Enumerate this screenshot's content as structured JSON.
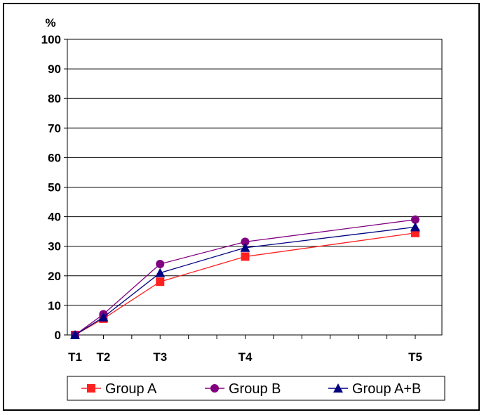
{
  "chart_data": {
    "type": "line",
    "y_unit_label": "%",
    "x": [
      "T1",
      "T2",
      "T3",
      "T4",
      "T5"
    ],
    "x_positions": [
      0,
      1,
      3,
      6,
      12
    ],
    "xlim": [
      0,
      13
    ],
    "ylim": [
      0,
      100
    ],
    "yticks": [
      0,
      10,
      20,
      30,
      40,
      50,
      60,
      70,
      80,
      90,
      100
    ],
    "grid": "horizontal",
    "legend_position": "bottom",
    "series": [
      {
        "name": "Group A",
        "marker": "square",
        "color": "#ff2020",
        "values": [
          0,
          5.5,
          18,
          26.5,
          34.5
        ]
      },
      {
        "name": "Group B",
        "marker": "circle",
        "color": "#800080",
        "values": [
          0,
          7,
          24,
          31.5,
          39
        ]
      },
      {
        "name": "Group A+B",
        "marker": "triangle",
        "color": "#000080",
        "values": [
          0,
          6,
          21,
          29.5,
          36.5
        ]
      }
    ]
  }
}
